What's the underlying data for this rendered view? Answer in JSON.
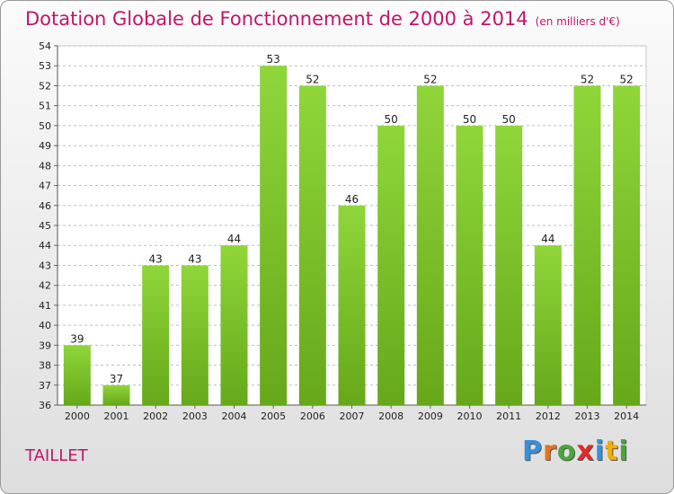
{
  "title": "Dotation Globale de Fonctionnement de 2000 à 2014",
  "unit_note": "(en milliers d'€)",
  "commune": "TAILLET",
  "logo": {
    "letters": [
      "P",
      "r",
      "o",
      "x",
      "i",
      "t",
      "i"
    ],
    "colors": [
      "#3a8fd6",
      "#e8731a",
      "#4aa63a",
      "#e12a2a",
      "#3a8fd6",
      "#f0b000",
      "#4aa63a"
    ]
  },
  "bar_color": "#7cc52a",
  "chart_data": {
    "type": "bar",
    "title": "Dotation Globale de Fonctionnement de 2000 à 2014",
    "categories": [
      "2000",
      "2001",
      "2002",
      "2003",
      "2004",
      "2005",
      "2006",
      "2007",
      "2008",
      "2009",
      "2010",
      "2011",
      "2012",
      "2013",
      "2014"
    ],
    "values": [
      39,
      37,
      43,
      43,
      44,
      53,
      52,
      46,
      50,
      52,
      50,
      50,
      44,
      52,
      52
    ],
    "ylim": [
      36,
      54
    ],
    "yticks": [
      36,
      37,
      38,
      39,
      40,
      41,
      42,
      43,
      44,
      45,
      46,
      47,
      48,
      49,
      50,
      51,
      52,
      53,
      54
    ],
    "grid": true,
    "legend": "none"
  }
}
